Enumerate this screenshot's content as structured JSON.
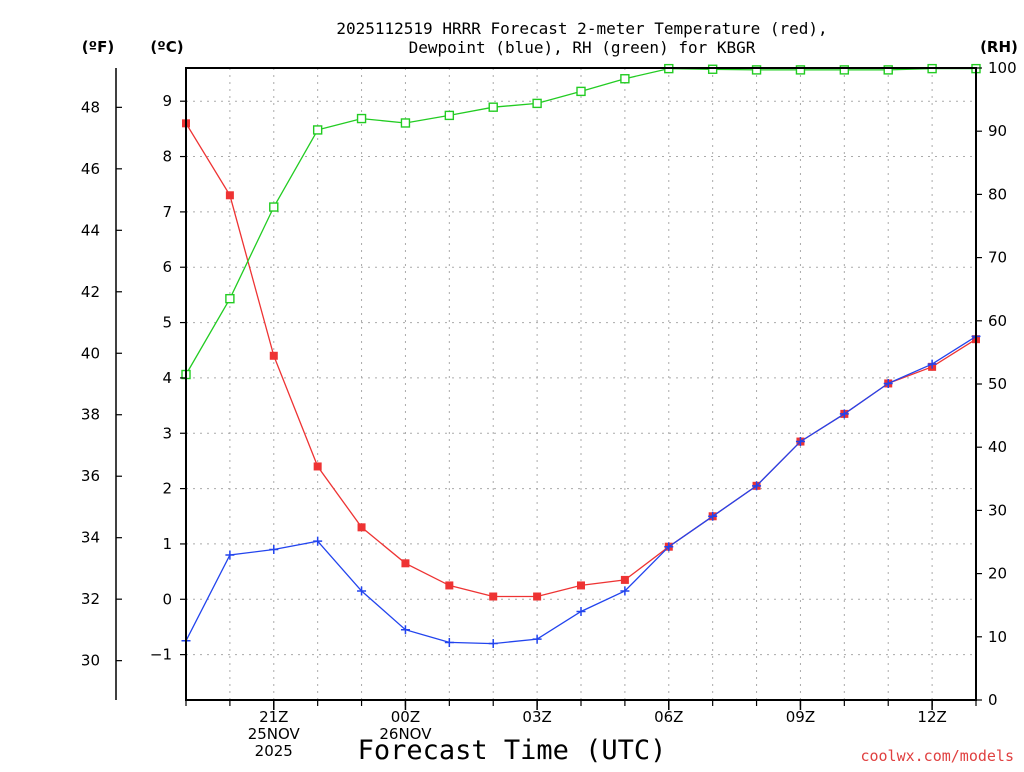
{
  "chart_data": {
    "type": "line",
    "title": [
      "2025112519 HRRR Forecast 2-meter Temperature (red),",
      "Dewpoint (blue), RH (green) for KBGR"
    ],
    "xlabel": "Forecast Time (UTC)",
    "credit": "coolwx.com/models",
    "unit_labels": {
      "fahrenheit": "(ºF)",
      "celsius": "(ºC)",
      "rh": "(RH)"
    },
    "x_hours": [
      0,
      1,
      2,
      3,
      4,
      5,
      6,
      7,
      8,
      9,
      10,
      11,
      12,
      13,
      14,
      15,
      16,
      17,
      18
    ],
    "x_ticks": [
      {
        "hour": 2,
        "lines": [
          "21Z",
          "25NOV",
          "2025"
        ]
      },
      {
        "hour": 5,
        "lines": [
          "00Z",
          "26NOV"
        ]
      },
      {
        "hour": 8,
        "lines": [
          "03Z"
        ]
      },
      {
        "hour": 11,
        "lines": [
          "06Z"
        ]
      },
      {
        "hour": 14,
        "lines": [
          "09Z"
        ]
      },
      {
        "hour": 17,
        "lines": [
          "12Z"
        ]
      }
    ],
    "celsius_axis": {
      "range": [
        -1.82,
        9.6
      ],
      "ticks": [
        -1,
        0,
        1,
        2,
        3,
        4,
        5,
        6,
        7,
        8,
        9
      ]
    },
    "fahrenheit_axis": {
      "range": [
        28.72,
        49.28
      ],
      "ticks": [
        30,
        32,
        34,
        36,
        38,
        40,
        42,
        44,
        46,
        48
      ]
    },
    "rh_axis": {
      "range": [
        0,
        100
      ],
      "ticks": [
        0,
        10,
        20,
        30,
        40,
        50,
        60,
        70,
        80,
        90,
        100
      ]
    },
    "grid": true,
    "series": [
      {
        "name": "Temperature",
        "axis": "celsius",
        "color": "#ee3333",
        "marker": "filled-square",
        "values": [
          8.6,
          7.3,
          4.4,
          2.4,
          1.3,
          0.65,
          0.25,
          0.05,
          0.05,
          0.25,
          0.35,
          0.95,
          1.5,
          2.05,
          2.85,
          3.35,
          3.9,
          4.2,
          4.7
        ]
      },
      {
        "name": "Dewpoint",
        "axis": "celsius",
        "color": "#2244ee",
        "marker": "plus",
        "values": [
          -0.75,
          0.8,
          0.9,
          1.05,
          0.15,
          -0.55,
          -0.78,
          -0.8,
          -0.72,
          -0.22,
          0.15,
          0.95,
          1.5,
          2.05,
          2.85,
          3.35,
          3.9,
          4.25,
          4.75
        ]
      },
      {
        "name": "RH",
        "axis": "rh",
        "color": "#22cc22",
        "marker": "open-square",
        "values": [
          51.5,
          63.5,
          78,
          90.2,
          92,
          91.3,
          92.5,
          93.8,
          94.4,
          96.3,
          98.3,
          99.9,
          99.8,
          99.7,
          99.7,
          99.7,
          99.7,
          99.9,
          99.9
        ]
      }
    ]
  }
}
